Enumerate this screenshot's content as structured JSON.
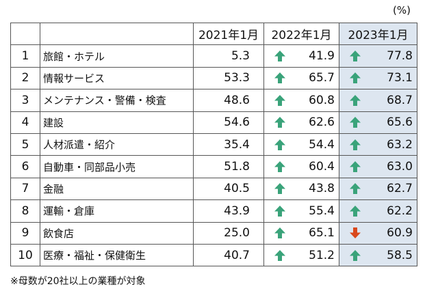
{
  "unit_label": "(%)",
  "columns": [
    "2021年1月",
    "2022年1月",
    "2023年1月"
  ],
  "footnote": "※母数が20社以上の業種が対象",
  "colors": {
    "up": "#3aa37a",
    "down": "#d9481c",
    "highlight_column": "#dde6f0"
  },
  "chart_data": {
    "type": "table",
    "columns": [
      "",
      "",
      "2021年1月",
      "2022年1月",
      "2023年1月"
    ],
    "rows": [
      {
        "rank": "1",
        "name": "旅館・ホテル",
        "v2021": "5.3",
        "v2022": "41.9",
        "v2022_trend": "up",
        "v2023": "77.8",
        "v2023_trend": "up"
      },
      {
        "rank": "2",
        "name": "情報サービス",
        "v2021": "53.3",
        "v2022": "65.7",
        "v2022_trend": "up",
        "v2023": "73.1",
        "v2023_trend": "up"
      },
      {
        "rank": "3",
        "name": "メンテナンス・警備・検査",
        "v2021": "48.6",
        "v2022": "60.8",
        "v2022_trend": "up",
        "v2023": "68.7",
        "v2023_trend": "up"
      },
      {
        "rank": "4",
        "name": "建設",
        "v2021": "54.6",
        "v2022": "62.6",
        "v2022_trend": "up",
        "v2023": "65.6",
        "v2023_trend": "up"
      },
      {
        "rank": "5",
        "name": "人材派遣・紹介",
        "v2021": "35.4",
        "v2022": "54.4",
        "v2022_trend": "up",
        "v2023": "63.2",
        "v2023_trend": "up"
      },
      {
        "rank": "6",
        "name": "自動車・同部品小売",
        "v2021": "51.8",
        "v2022": "60.4",
        "v2022_trend": "up",
        "v2023": "63.0",
        "v2023_trend": "up"
      },
      {
        "rank": "7",
        "name": "金融",
        "v2021": "40.5",
        "v2022": "43.8",
        "v2022_trend": "up",
        "v2023": "62.7",
        "v2023_trend": "up"
      },
      {
        "rank": "8",
        "name": "運輸・倉庫",
        "v2021": "43.9",
        "v2022": "55.4",
        "v2022_trend": "up",
        "v2023": "62.2",
        "v2023_trend": "up"
      },
      {
        "rank": "9",
        "name": "飲食店",
        "v2021": "25.0",
        "v2022": "65.1",
        "v2022_trend": "up",
        "v2023": "60.9",
        "v2023_trend": "down"
      },
      {
        "rank": "10",
        "name": "医療・福祉・保健衛生",
        "v2021": "40.7",
        "v2022": "51.2",
        "v2022_trend": "up",
        "v2023": "58.5",
        "v2023_trend": "up"
      }
    ]
  }
}
